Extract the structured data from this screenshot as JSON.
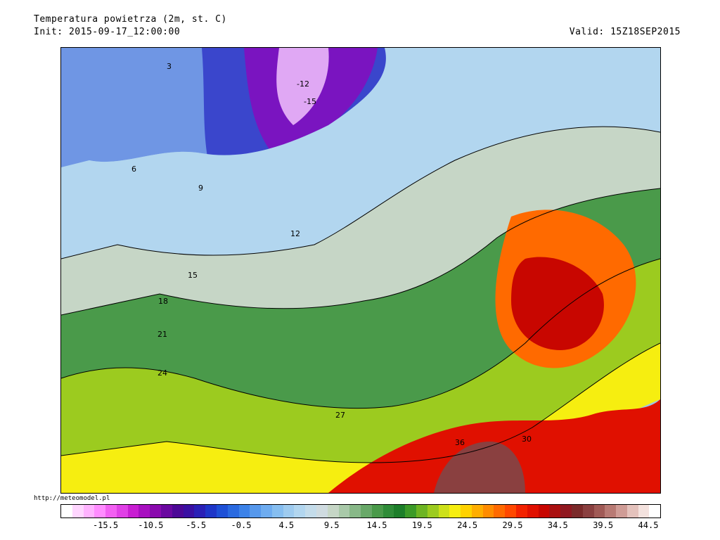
{
  "header": {
    "title": "Temperatura powietrza (2m, st. C)",
    "init": "Init: 2015-09-17_12:00:00",
    "valid": "Valid: 15Z18SEP2015"
  },
  "credit": "http://meteomodel.pl",
  "legend": {
    "colors": [
      "#ffffff",
      "#ffd6ff",
      "#ffb3ff",
      "#ff8cff",
      "#f260f2",
      "#e040e6",
      "#c81ed2",
      "#a810c0",
      "#8a0aae",
      "#6a08a0",
      "#4c0896",
      "#3a10a2",
      "#2a20b6",
      "#1e36c8",
      "#1e50d6",
      "#2a6ae0",
      "#3c82e8",
      "#5698ec",
      "#6eacf0",
      "#86bef0",
      "#9ecbef",
      "#b2d6ef",
      "#c4dcea",
      "#cfdbe0",
      "#c6d6c6",
      "#a9c9a9",
      "#88b888",
      "#68a868",
      "#4a9a4a",
      "#2f8c38",
      "#1d7e2a",
      "#3c9a28",
      "#6db423",
      "#9ccb1f",
      "#cde01a",
      "#f6ee10",
      "#ffd200",
      "#ffae00",
      "#ff8c00",
      "#ff6a00",
      "#ff4800",
      "#f22200",
      "#e01000",
      "#c80600",
      "#aa1010",
      "#901820",
      "#7a2a2a",
      "#8a4040",
      "#a05a56",
      "#b87a74",
      "#cf9c96",
      "#e4c2bc",
      "#f4e2de",
      "#ffffff"
    ],
    "ticks": [
      "-15.5",
      "-10.5",
      "-5.5",
      "-0.5",
      "4.5",
      "9.5",
      "14.5",
      "19.5",
      "24.5",
      "29.5",
      "34.5",
      "39.5",
      "44.5"
    ]
  },
  "map": {
    "contour_labels": [
      "3",
      "6",
      "9",
      "12",
      "15",
      "18",
      "21",
      "24",
      "27",
      "30",
      "36",
      "-12",
      "-15"
    ]
  }
}
